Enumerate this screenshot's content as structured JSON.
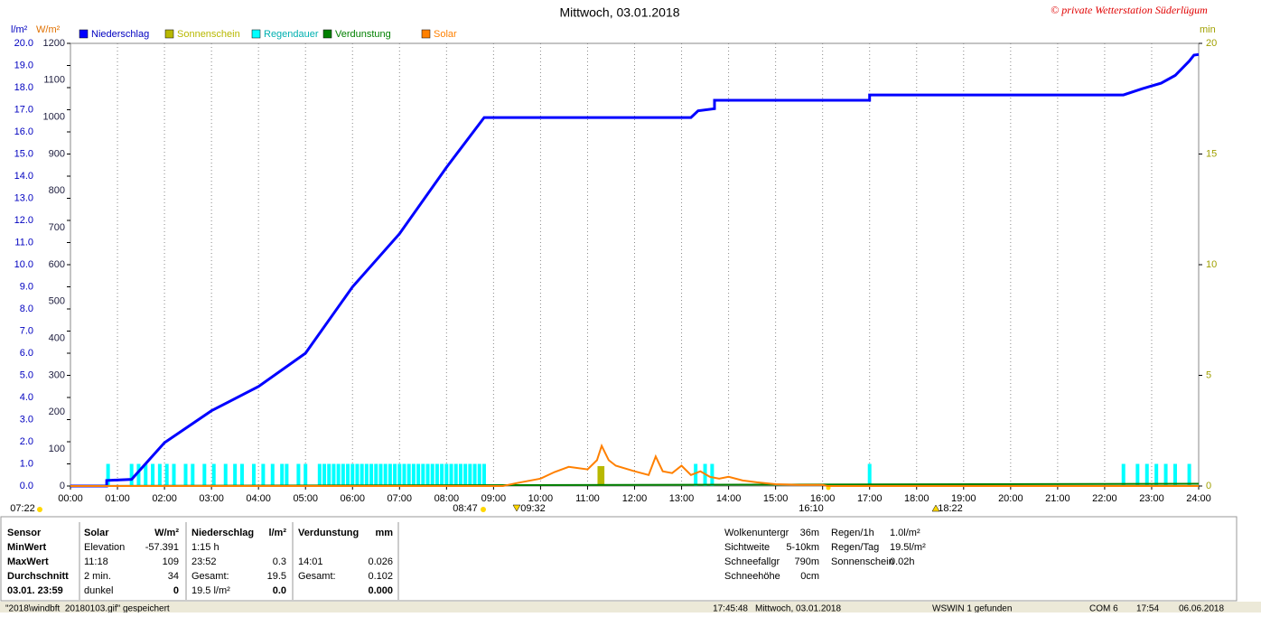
{
  "chart_data": {
    "type": "line",
    "title": "Mittwoch, 03.01.2018",
    "credit": "© private Wetterstation Süderlügum",
    "y_label": "l/m²",
    "y2_label": "W/m²",
    "y3_label": "min",
    "xlim": [
      0,
      24
    ],
    "xticks": [
      {
        "value": 0,
        "label": "00:00"
      },
      {
        "value": 1,
        "label": "01:00"
      },
      {
        "value": 2,
        "label": "02:00"
      },
      {
        "value": 3,
        "label": "03:00"
      },
      {
        "value": 4,
        "label": "04:00"
      },
      {
        "value": 5,
        "label": "05:00"
      },
      {
        "value": 6,
        "label": "06:00"
      },
      {
        "value": 7,
        "label": "07:00"
      },
      {
        "value": 8,
        "label": "08:00"
      },
      {
        "value": 9,
        "label": "09:00"
      },
      {
        "value": 10,
        "label": "10:00"
      },
      {
        "value": 11,
        "label": "11:00"
      },
      {
        "value": 12,
        "label": "12:00"
      },
      {
        "value": 13,
        "label": "13:00"
      },
      {
        "value": 14,
        "label": "14:00"
      },
      {
        "value": 15,
        "label": "15:00"
      },
      {
        "value": 16,
        "label": "16:00"
      },
      {
        "value": 17,
        "label": "17:00"
      },
      {
        "value": 18,
        "label": "18:00"
      },
      {
        "value": 19,
        "label": "19:00"
      },
      {
        "value": 20,
        "label": "20:00"
      },
      {
        "value": 21,
        "label": "21:00"
      },
      {
        "value": 22,
        "label": "22:00"
      },
      {
        "value": 23,
        "label": "23:00"
      },
      {
        "value": 24,
        "label": "24:00"
      }
    ],
    "ylim": [
      0,
      20
    ],
    "yticks": [
      {
        "value": 0,
        "label": "0.0"
      },
      {
        "value": 1,
        "label": "1.0"
      },
      {
        "value": 2,
        "label": "2.0"
      },
      {
        "value": 3,
        "label": "3.0"
      },
      {
        "value": 4,
        "label": "4.0"
      },
      {
        "value": 5,
        "label": "5.0"
      },
      {
        "value": 6,
        "label": "6.0"
      },
      {
        "value": 7,
        "label": "7.0"
      },
      {
        "value": 8,
        "label": "8.0"
      },
      {
        "value": 9,
        "label": "9.0"
      },
      {
        "value": 10,
        "label": "10.0"
      },
      {
        "value": 11,
        "label": "11.0"
      },
      {
        "value": 12,
        "label": "12.0"
      },
      {
        "value": 13,
        "label": "13.0"
      },
      {
        "value": 14,
        "label": "14.0"
      },
      {
        "value": 15,
        "label": "15.0"
      },
      {
        "value": 16,
        "label": "16.0"
      },
      {
        "value": 17,
        "label": "17.0"
      },
      {
        "value": 18,
        "label": "18.0"
      },
      {
        "value": 19,
        "label": "19.0"
      },
      {
        "value": 20,
        "label": "20.0"
      }
    ],
    "y2lim": [
      0,
      1200
    ],
    "y2ticks": [
      0,
      100,
      200,
      300,
      400,
      500,
      600,
      700,
      800,
      900,
      1000,
      1100,
      1200
    ],
    "y3lim": [
      0,
      20
    ],
    "y3ticks": [
      0,
      5,
      10,
      15,
      20
    ],
    "grid": "x",
    "series": [
      {
        "name": "Niederschlag",
        "color": "#0000ff",
        "kind": "line",
        "axis": "y",
        "x": [
          0,
          0.77,
          0.77,
          1.3,
          2,
          3,
          4,
          5,
          6,
          7,
          8,
          8.8,
          13.2,
          13.35,
          13.7,
          13.7,
          17,
          17,
          22.4,
          22.8,
          23.2,
          23.5,
          23.8,
          23.9,
          24
        ],
        "values": [
          0,
          0,
          0.25,
          0.3,
          1.96,
          3.4,
          4.5,
          6.0,
          9.0,
          11.4,
          14.4,
          16.65,
          16.65,
          16.95,
          17.05,
          17.43,
          17.43,
          17.67,
          17.67,
          17.95,
          18.2,
          18.55,
          19.2,
          19.47,
          19.5
        ]
      },
      {
        "name": "Sonnenschein",
        "color": "#b8b800",
        "kind": "bar",
        "axis": "y3",
        "x": [
          11.25,
          11.32
        ],
        "values": [
          0.9,
          0.9
        ]
      },
      {
        "name": "Regendauer",
        "color": "#00ffff",
        "kind": "bar",
        "axis": "y3",
        "x": [
          0.8,
          1.3,
          1.45,
          1.6,
          1.75,
          1.9,
          2.05,
          2.2,
          2.45,
          2.6,
          2.85,
          3.05,
          3.3,
          3.5,
          3.65,
          3.9,
          4.1,
          4.3,
          4.5,
          4.6,
          4.85,
          5.0,
          5.3,
          5.4,
          5.5,
          5.6,
          5.7,
          5.8,
          5.9,
          6.0,
          6.1,
          6.2,
          6.3,
          6.4,
          6.5,
          6.6,
          6.7,
          6.8,
          6.9,
          7.0,
          7.1,
          7.2,
          7.3,
          7.4,
          7.5,
          7.6,
          7.7,
          7.8,
          7.9,
          8.0,
          8.1,
          8.2,
          8.3,
          8.4,
          8.5,
          8.6,
          8.7,
          8.8,
          13.3,
          13.5,
          13.65,
          17.0,
          22.4,
          22.7,
          22.9,
          23.1,
          23.3,
          23.5,
          23.8
        ],
        "values": [
          1,
          1,
          1,
          1,
          1,
          1,
          1,
          1,
          1,
          1,
          1,
          1,
          1,
          1,
          1,
          1,
          1,
          1,
          1,
          1,
          1,
          1,
          1,
          1,
          1,
          1,
          1,
          1,
          1,
          1,
          1,
          1,
          1,
          1,
          1,
          1,
          1,
          1,
          1,
          1,
          1,
          1,
          1,
          1,
          1,
          1,
          1,
          1,
          1,
          1,
          1,
          1,
          1,
          1,
          1,
          1,
          1,
          1,
          1,
          1,
          1,
          1,
          1,
          1,
          1,
          1,
          1,
          1,
          1
        ]
      },
      {
        "name": "Verdunstung",
        "color": "#008000",
        "kind": "line",
        "axis": "y",
        "x": [
          0,
          24
        ],
        "values": [
          0,
          0.1
        ]
      },
      {
        "name": "Solar",
        "color": "#ff8000",
        "kind": "line",
        "axis": "y2",
        "x": [
          0,
          9.2,
          9.5,
          10,
          10.3,
          10.6,
          11,
          11.2,
          11.3,
          11.45,
          11.6,
          12,
          12.3,
          12.45,
          12.6,
          12.8,
          13,
          13.2,
          13.4,
          13.6,
          13.8,
          14,
          14.3,
          14.6,
          15,
          15.5,
          16,
          16.1,
          24
        ],
        "values": [
          0,
          0,
          8,
          20,
          38,
          52,
          45,
          70,
          109,
          70,
          55,
          40,
          30,
          80,
          40,
          35,
          55,
          30,
          40,
          25,
          20,
          25,
          15,
          10,
          5,
          3,
          3,
          0,
          0
        ]
      }
    ],
    "annotations": [
      "07:22",
      "08:47",
      "09:32",
      "16:10",
      "18:22"
    ]
  },
  "stats": {
    "rows": [
      [
        "Sensor",
        "Solar",
        "W/m²",
        "Niederschlag",
        "l/m²",
        "Verdunstung",
        "mm"
      ],
      [
        "MinWert",
        "Elevation",
        "-57.391",
        "1:15 h",
        null,
        null,
        null
      ],
      [
        "MaxWert",
        "11:18",
        "109",
        "23:52",
        "0.3",
        "14:01",
        "0.026"
      ],
      [
        "Durchschnitt",
        "2 min.",
        "34",
        "Gesamt:",
        "19.5",
        "Gesamt:",
        "0.102"
      ],
      [
        "03.01. 23:59",
        "dunkel",
        "0",
        "19.5 l/m²",
        "0.0",
        null,
        "0.000"
      ]
    ],
    "info": [
      [
        "Wolkenuntergr",
        "36m"
      ],
      [
        "Sichtweite",
        "5-10km"
      ],
      [
        "Schneefallgr",
        "790m"
      ],
      [
        "Schneehöhe",
        "0cm"
      ]
    ],
    "info2": [
      [
        "Regen/1h",
        "1.0l/m²"
      ],
      [
        "Regen/Tag",
        "19.5l/m²"
      ],
      [
        "Sonnenschein",
        "0.02h"
      ]
    ]
  },
  "status": [
    "\"2018\\windbft_20180103.gif\" gespeichert",
    "17:45:48",
    "Mittwoch, 03.01.2018",
    "WSWIN 1 gefunden",
    "COM 6",
    "17:54",
    "06.06.2018"
  ]
}
